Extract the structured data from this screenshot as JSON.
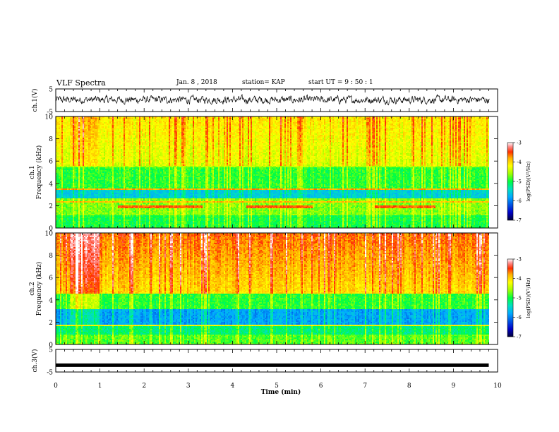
{
  "header": {
    "title": "VLF Spectra",
    "date": "Jan. 8 , 2018",
    "station": "station= KAP",
    "start_ut": "start UT =  9 : 50 : 1"
  },
  "chart_data": [
    {
      "type": "line",
      "panel": "ch1-waveform",
      "ylabel": "ch.1(V)",
      "y_ticks": [
        "5",
        "-5"
      ],
      "ylim": [
        -5,
        5
      ],
      "xlim": [
        0,
        10
      ],
      "series_color": "#000000",
      "description_of_data": "noisy waveform oscillating approximately between -1.5 and 2 V across 0-9.8 min"
    },
    {
      "type": "heatmap",
      "panel": "ch1-spectrogram",
      "ylabel": "ch.1\nFrequency (kHz)",
      "y_ticks": [
        "0",
        "2",
        "4",
        "6",
        "8",
        "10"
      ],
      "ylim": [
        0,
        10
      ],
      "xlim": [
        0,
        10
      ],
      "colorbar": {
        "label": "log(PSD)(V²/Hz)",
        "ticks": [
          "-3",
          "-4",
          "-5",
          "-6",
          "-7"
        ],
        "range": [
          -7,
          -3
        ]
      }
    },
    {
      "type": "heatmap",
      "panel": "ch2-spectrogram",
      "ylabel": "ch.2\nFrequency (kHz)",
      "y_ticks": [
        "0",
        "2",
        "4",
        "6",
        "8",
        "10"
      ],
      "ylim": [
        0,
        10
      ],
      "xlim": [
        0,
        10
      ],
      "colorbar": {
        "label": "log(PSD)(V²/Hz)",
        "ticks": [
          "-3",
          "-4",
          "-5",
          "-6",
          "-7"
        ],
        "range": [
          -7,
          -3
        ]
      }
    },
    {
      "type": "line",
      "panel": "ch3-waveform",
      "ylabel": "ch.3(V)",
      "y_ticks": [
        "5",
        "-5"
      ],
      "ylim": [
        -5,
        5
      ],
      "xlim": [
        0,
        10
      ],
      "x": [
        0,
        9.8
      ],
      "y": [
        -2,
        -2
      ],
      "series_color": "#000000"
    }
  ],
  "x_axis": {
    "label": "Time (min)",
    "ticks": [
      "0",
      "1",
      "2",
      "3",
      "4",
      "5",
      "6",
      "7",
      "8",
      "9",
      "10"
    ]
  },
  "colors": {
    "colormap": [
      "#00003a",
      "#0000c8",
      "#00aaff",
      "#00e0c0",
      "#00ff40",
      "#a0ff00",
      "#ffff00",
      "#ffb000",
      "#ff3000",
      "#ff9090",
      "#ffffff"
    ]
  }
}
